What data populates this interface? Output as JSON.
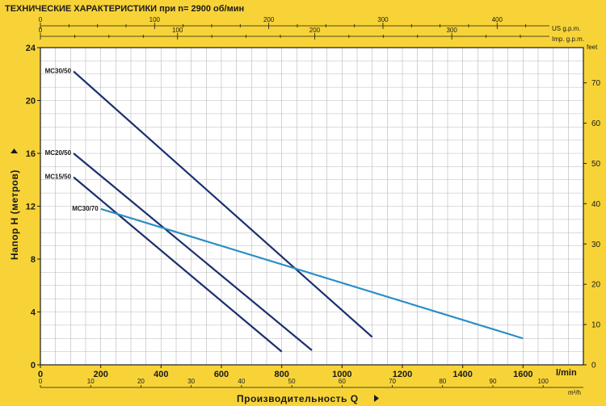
{
  "chart_data": {
    "type": "line",
    "title": "ТЕХНИЧЕСКИЕ ХАРАКТЕРИСТИКИ при n= 2900 об/мин",
    "xlabel": "Производительность Q",
    "ylabel": "Напор H  (метров)",
    "x_unit": "l/min",
    "x_unit2": "m³/h",
    "y2_unit": "feet",
    "top_unit1": "US g.p.m.",
    "top_unit2": "Imp. g.p.m.",
    "xlim": [
      0,
      1800
    ],
    "ylim": [
      0,
      24
    ],
    "x_ticks": [
      0,
      200,
      400,
      600,
      800,
      1000,
      1200,
      1400,
      1600
    ],
    "x_ticks_m3h": [
      0,
      10,
      20,
      30,
      40,
      50,
      60,
      70,
      80,
      90,
      100
    ],
    "y_ticks": [
      0,
      4,
      8,
      12,
      16,
      20,
      24
    ],
    "y2_ticks": [
      0,
      10,
      20,
      30,
      40,
      50,
      60,
      70
    ],
    "top1_ticks": [
      0,
      100,
      200,
      300,
      400
    ],
    "top2_ticks": [
      0,
      100,
      200,
      300
    ],
    "grid": true,
    "series": [
      {
        "name": "MC30/50",
        "color": "#1a2f6e",
        "x": [
          110,
          1100
        ],
        "y": [
          22.2,
          2.1
        ]
      },
      {
        "name": "MC20/50",
        "color": "#1a2f6e",
        "x": [
          110,
          900
        ],
        "y": [
          16.0,
          1.1
        ]
      },
      {
        "name": "MC15/50",
        "color": "#1a2f6e",
        "x": [
          110,
          800
        ],
        "y": [
          14.2,
          1.0
        ]
      },
      {
        "name": "MC30/70",
        "color": "#2a8dc5",
        "x": [
          200,
          1600
        ],
        "y": [
          11.8,
          2.0
        ]
      }
    ]
  }
}
